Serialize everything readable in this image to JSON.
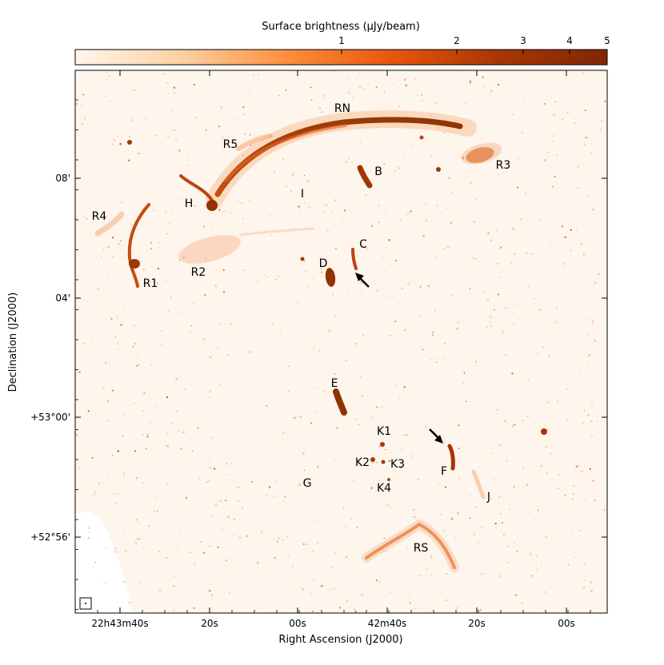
{
  "chart_data": {
    "type": "heatmap",
    "colorbar": {
      "label": "Surface brightness (μJy/beam)",
      "ticks": [
        "1",
        "2",
        "3",
        "4",
        "5"
      ],
      "tick_values": [
        1,
        2,
        3,
        4,
        5
      ],
      "range": [
        0,
        5
      ],
      "colors": [
        "#fff7ec",
        "#fdd0a2",
        "#fd8d3c",
        "#e6550d",
        "#a63603",
        "#7f2704"
      ]
    },
    "xlabel": "Right Ascension (J2000)",
    "ylabel": "Declination (J2000)",
    "x_ticks": [
      "22h43m40s",
      "20s",
      "00s",
      "42m40s",
      "20s",
      "00s"
    ],
    "y_ticks": [
      "08'",
      "04'",
      "+53°00'",
      "+52°56'"
    ],
    "annotations": [
      "RN",
      "R5",
      "R3",
      "B",
      "I",
      "H",
      "R4",
      "C",
      "D",
      "R2",
      "R1",
      "E",
      "K1",
      "K2",
      "K3",
      "F",
      "K4",
      "G",
      "J",
      "RS"
    ],
    "arrows": 2,
    "beam_marker": true,
    "background": "#fef5ec"
  }
}
